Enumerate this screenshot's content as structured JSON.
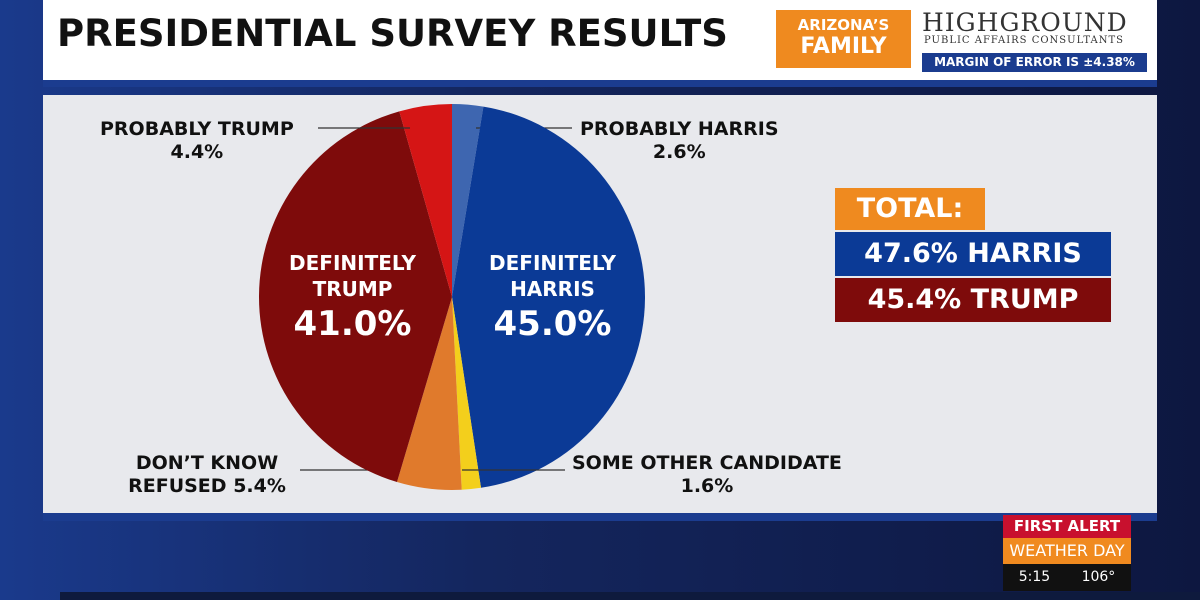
{
  "header": {
    "title": "PRESIDENTIAL SURVEY RESULTS",
    "station_top": "ARIZONA’S",
    "station_bottom": "FAMILY",
    "sponsor": "HIGHGROUND",
    "sponsor_sub": "PUBLIC AFFAIRS CONSULTANTS",
    "margin": "MARGIN OF ERROR IS ±4.38%"
  },
  "chart_data": {
    "type": "pie",
    "categories": [
      "PROBABLY HARRIS",
      "DEFINITELY HARRIS",
      "SOME OTHER CANDIDATE",
      "DON’T KNOW REFUSED",
      "DEFINITELY TRUMP",
      "PROBABLY TRUMP"
    ],
    "values": [
      2.6,
      45.0,
      1.6,
      5.4,
      41.0,
      4.4
    ],
    "value_labels": [
      "2.6%",
      "45.0%",
      "1.6%",
      "5.4%",
      "41.0%",
      "4.4%"
    ],
    "colors": [
      "#3e66b0",
      "#0b3a96",
      "#f3cf1c",
      "#e07a2c",
      "#7e0b0b",
      "#d51515"
    ]
  },
  "totals": {
    "title": "TOTAL:",
    "harris": "47.6% HARRIS",
    "trump": "45.4% TRUMP"
  },
  "weather": {
    "top": "FIRST ALERT",
    "bottom": "WEATHER DAY",
    "time": "5:15",
    "temp": "106°"
  }
}
